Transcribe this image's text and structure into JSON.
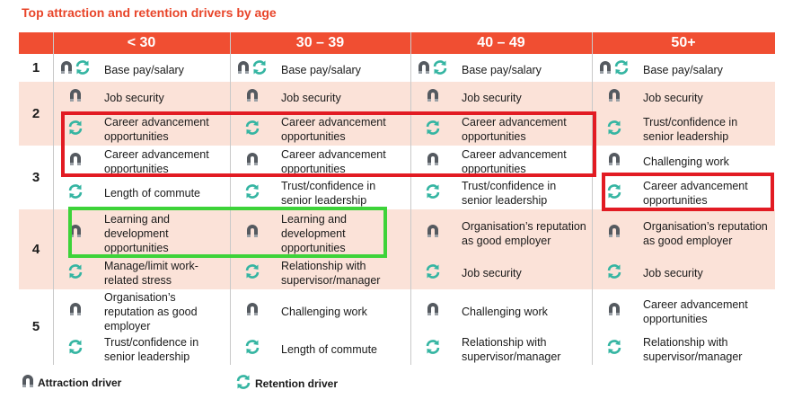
{
  "title": "Top attraction and retention drivers by age",
  "colors": {
    "header": "#f04e32",
    "title": "#e8452a",
    "shaded": "#fbe2d8",
    "icon": "#555a60",
    "retention": "#35b5a2",
    "highlight_red": "#e21b23",
    "highlight_green": "#3dd339"
  },
  "columns": [
    "< 30",
    "30 – 39",
    "40 – 49",
    "50+"
  ],
  "ranks": [
    "1",
    "2",
    "3",
    "4",
    "5"
  ],
  "cells": [
    [
      {
        "icons": [
          "magnet-icon",
          "refresh-icon"
        ],
        "text": "Base pay/salary"
      },
      {
        "icons": [
          "magnet-icon",
          "refresh-icon"
        ],
        "text": "Base pay/salary"
      },
      {
        "icons": [
          "magnet-icon",
          "refresh-icon"
        ],
        "text": "Base pay/salary"
      },
      {
        "icons": [
          "magnet-icon",
          "refresh-icon"
        ],
        "text": "Base pay/salary"
      }
    ],
    [
      {
        "icons": [
          "magnet-icon"
        ],
        "text": "Job security"
      },
      {
        "icons": [
          "magnet-icon"
        ],
        "text": "Job security"
      },
      {
        "icons": [
          "magnet-icon"
        ],
        "text": "Job security"
      },
      {
        "icons": [
          "magnet-icon"
        ],
        "text": "Job security"
      }
    ],
    [
      {
        "icons": [
          "refresh-icon"
        ],
        "text": "Career advancement opportunities"
      },
      {
        "icons": [
          "refresh-icon"
        ],
        "text": "Career advancement opportunities"
      },
      {
        "icons": [
          "refresh-icon"
        ],
        "text": "Career advancement opportunities"
      },
      {
        "icons": [
          "refresh-icon"
        ],
        "text": "Trust/confidence in senior leadership"
      }
    ],
    [
      {
        "icons": [
          "magnet-icon"
        ],
        "text": "Career advancement opportunities"
      },
      {
        "icons": [
          "magnet-icon"
        ],
        "text": "Career advancement opportunities"
      },
      {
        "icons": [
          "magnet-icon"
        ],
        "text": "Career advancement opportunities"
      },
      {
        "icons": [
          "magnet-icon"
        ],
        "text": "Challenging work"
      }
    ],
    [
      {
        "icons": [
          "refresh-icon"
        ],
        "text": "Length of commute"
      },
      {
        "icons": [
          "refresh-icon"
        ],
        "text": "Trust/confidence in senior leadership"
      },
      {
        "icons": [
          "refresh-icon"
        ],
        "text": "Trust/confidence in senior leadership"
      },
      {
        "icons": [
          "refresh-icon"
        ],
        "text": "Career advancement opportunities"
      }
    ],
    [
      {
        "icons": [
          "magnet-icon"
        ],
        "text": "Learning and development opportunities"
      },
      {
        "icons": [
          "magnet-icon"
        ],
        "text": "Learning and development opportunities"
      },
      {
        "icons": [
          "magnet-icon"
        ],
        "text": "Organisation’s reputation as good employer"
      },
      {
        "icons": [
          "magnet-icon"
        ],
        "text": "Organisation’s reputation as good employer"
      }
    ],
    [
      {
        "icons": [
          "refresh-icon"
        ],
        "text": "Manage/limit work-related stress"
      },
      {
        "icons": [
          "refresh-icon"
        ],
        "text": "Relationship with supervisor/manager"
      },
      {
        "icons": [
          "refresh-icon"
        ],
        "text": "Job security"
      },
      {
        "icons": [
          "refresh-icon"
        ],
        "text": "Job security"
      }
    ],
    [
      {
        "icons": [
          "magnet-icon"
        ],
        "text": "Organisation’s reputation as good employer"
      },
      {
        "icons": [
          "magnet-icon"
        ],
        "text": "Challenging work"
      },
      {
        "icons": [
          "magnet-icon"
        ],
        "text": "Challenging work"
      },
      {
        "icons": [
          "magnet-icon"
        ],
        "text": "Career advancement opportunities"
      }
    ],
    [
      {
        "icons": [
          "refresh-icon"
        ],
        "text": "Trust/confidence in senior leadership"
      },
      {
        "icons": [
          "refresh-icon"
        ],
        "text": "Length of commute"
      },
      {
        "icons": [
          "refresh-icon"
        ],
        "text": "Relationship with supervisor/manager"
      },
      {
        "icons": [
          "refresh-icon"
        ],
        "text": "Relationship with supervisor/manager"
      }
    ]
  ],
  "legend": {
    "attraction": {
      "icon": "magnet-icon",
      "label": "Attraction driver"
    },
    "retention": {
      "icon": "refresh-icon",
      "label": "Retention driver"
    }
  }
}
